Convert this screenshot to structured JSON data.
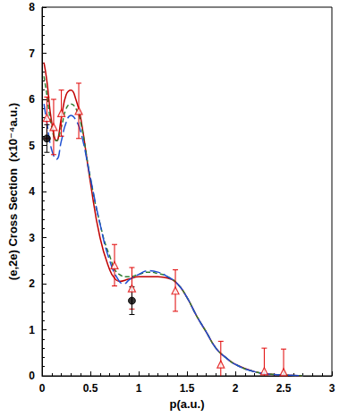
{
  "chart_data": {
    "type": "line",
    "x_label": "p(a.u.)",
    "y_label": "(e,2e) Cross Section  (x10⁻⁴a.u.)",
    "xlim": [
      0,
      3
    ],
    "xticks": [
      0,
      0.5,
      1,
      1.5,
      2,
      2.5,
      3
    ],
    "ylim": [
      0,
      8
    ],
    "yticks": [
      0,
      1,
      2,
      3,
      4,
      5,
      6,
      7,
      8
    ],
    "grid": false,
    "series": [
      {
        "type": "line",
        "color": "#c00000",
        "line_style": "solid",
        "x": [
          0.02,
          0.05,
          0.1,
          0.15,
          0.2,
          0.25,
          0.3,
          0.35,
          0.4,
          0.5,
          0.6,
          0.7,
          0.75,
          0.8,
          0.9,
          1.0,
          1.1,
          1.2,
          1.3,
          1.4,
          1.5,
          1.6,
          1.7,
          1.8,
          1.9,
          2.0,
          2.2,
          2.4,
          2.6,
          2.7
        ],
        "values": [
          6.8,
          6.4,
          5.5,
          5.1,
          5.6,
          6.1,
          6.2,
          6.0,
          5.6,
          4.2,
          3.0,
          2.3,
          2.12,
          2.05,
          2.1,
          2.15,
          2.15,
          2.15,
          2.12,
          2.0,
          1.7,
          1.3,
          0.95,
          0.6,
          0.4,
          0.25,
          0.09,
          0.03,
          0.01,
          0.0
        ]
      },
      {
        "type": "line",
        "color": "#2e7d32",
        "line_style": "dashed",
        "x": [
          0.02,
          0.05,
          0.1,
          0.15,
          0.2,
          0.25,
          0.3,
          0.35,
          0.4,
          0.5,
          0.6,
          0.7,
          0.8,
          0.9,
          1.0,
          1.1,
          1.2,
          1.3,
          1.4,
          1.5,
          1.6,
          1.7,
          1.8,
          1.9,
          2.0,
          2.2,
          2.4,
          2.6,
          2.7
        ],
        "values": [
          6.5,
          6.1,
          5.4,
          5.1,
          5.4,
          5.8,
          5.9,
          5.8,
          5.5,
          4.3,
          3.3,
          2.6,
          2.2,
          2.15,
          2.2,
          2.25,
          2.22,
          2.15,
          2.0,
          1.7,
          1.3,
          0.95,
          0.6,
          0.4,
          0.25,
          0.09,
          0.03,
          0.01,
          0.0
        ]
      },
      {
        "type": "line",
        "color": "#1f4fd1",
        "line_style": "longdash",
        "x": [
          0.02,
          0.05,
          0.1,
          0.15,
          0.2,
          0.25,
          0.3,
          0.35,
          0.4,
          0.5,
          0.6,
          0.7,
          0.8,
          0.85,
          0.9,
          1.0,
          1.1,
          1.2,
          1.3,
          1.4,
          1.5,
          1.6,
          1.7,
          1.8,
          1.9,
          2.0,
          2.2,
          2.4,
          2.6,
          2.7
        ],
        "values": [
          5.9,
          5.5,
          4.9,
          4.7,
          5.1,
          5.5,
          5.65,
          5.55,
          5.3,
          4.3,
          3.3,
          2.5,
          2.05,
          2.0,
          2.08,
          2.2,
          2.28,
          2.25,
          2.15,
          2.0,
          1.7,
          1.3,
          0.95,
          0.6,
          0.4,
          0.25,
          0.09,
          0.03,
          0.01,
          0.0
        ]
      },
      {
        "type": "scatter",
        "color": "#e00000",
        "marker": "open-triangle",
        "x": [
          0.05,
          0.12,
          0.2,
          0.38,
          0.75,
          0.93,
          1.38,
          1.85,
          2.3,
          2.5
        ],
        "values": [
          5.6,
          5.4,
          5.7,
          5.75,
          2.4,
          1.9,
          1.85,
          0.25,
          0.1,
          0.08
        ],
        "errors": [
          0.45,
          0.6,
          0.5,
          0.6,
          0.45,
          0.45,
          0.45,
          0.5,
          0.5,
          0.5
        ]
      },
      {
        "type": "scatter",
        "color": "#000000",
        "marker": "circle",
        "x": [
          0.05,
          0.93
        ],
        "values": [
          5.15,
          1.63
        ],
        "errors": [
          0.3,
          0.3
        ]
      }
    ]
  }
}
